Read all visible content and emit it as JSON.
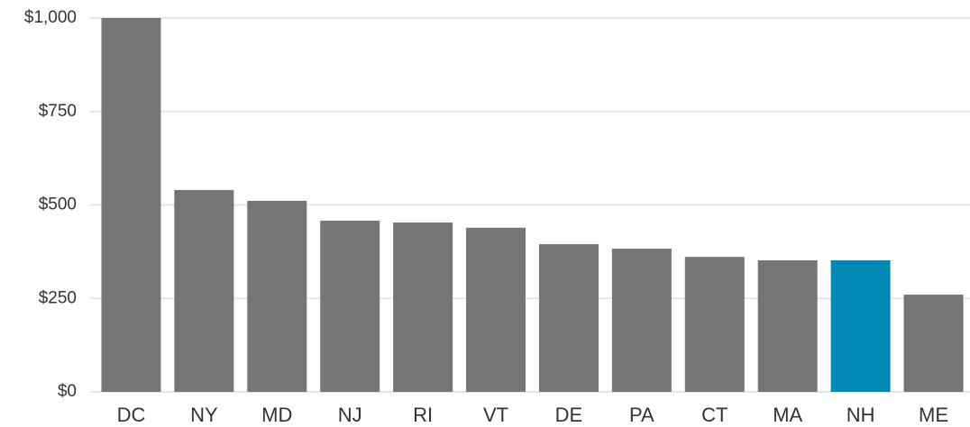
{
  "chart_data": {
    "type": "bar",
    "categories": [
      "DC",
      "NY",
      "MD",
      "NJ",
      "RI",
      "VT",
      "DE",
      "PA",
      "CT",
      "MA",
      "NH",
      "ME"
    ],
    "values": [
      1000,
      540,
      511,
      458,
      453,
      439,
      395,
      383,
      361,
      352,
      352,
      260
    ],
    "colors": [
      "#757575",
      "#757575",
      "#757575",
      "#757575",
      "#757575",
      "#757575",
      "#757575",
      "#757575",
      "#757575",
      "#757575",
      "#0088b5",
      "#757575"
    ],
    "ylim": [
      0,
      1000
    ],
    "yticks": [
      {
        "value": 0,
        "label": "$0"
      },
      {
        "value": 250,
        "label": "$250"
      },
      {
        "value": 500,
        "label": "$500"
      },
      {
        "value": 750,
        "label": "$750"
      },
      {
        "value": 1000,
        "label": "$1,000"
      }
    ],
    "grid": true
  }
}
